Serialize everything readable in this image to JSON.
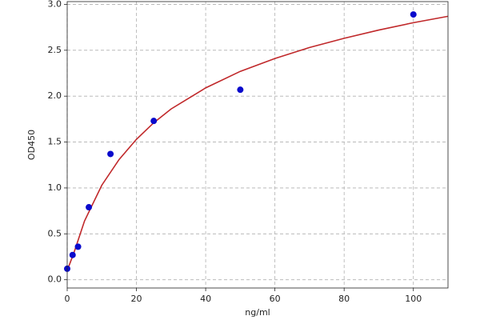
{
  "chart_data": {
    "type": "scatter",
    "x_label": "ng/ml",
    "y_label": "OD450",
    "xlim": [
      0,
      110
    ],
    "ylim": [
      -0.09,
      3.03
    ],
    "xticks": [
      0,
      20,
      40,
      60,
      80,
      100
    ],
    "yticks": [
      {
        "value": 0,
        "label": "0.0"
      },
      0.5,
      {
        "value": 1,
        "label": "1.0"
      },
      1.5,
      {
        "value": 2,
        "label": "2.0"
      },
      2.5,
      {
        "value": 3,
        "label": "3.0"
      }
    ],
    "grid": true,
    "series": [
      {
        "mode": "line",
        "color": "#c0282a",
        "x": [
          0,
          2,
          5,
          10,
          15,
          20,
          25,
          30,
          40,
          50,
          60,
          70,
          80,
          90,
          100,
          110
        ],
        "values": [
          0.1,
          0.3,
          0.64,
          1.03,
          1.31,
          1.53,
          1.71,
          1.86,
          2.09,
          2.27,
          2.41,
          2.53,
          2.63,
          2.72,
          2.8,
          2.87
        ]
      },
      {
        "mode": "markers",
        "color": "#0a0acc",
        "x": [
          0,
          1.56,
          3.13,
          6.25,
          12.5,
          25,
          50,
          100
        ],
        "values": [
          0.12,
          0.27,
          0.36,
          0.79,
          1.37,
          1.73,
          2.07,
          2.89
        ]
      }
    ]
  }
}
